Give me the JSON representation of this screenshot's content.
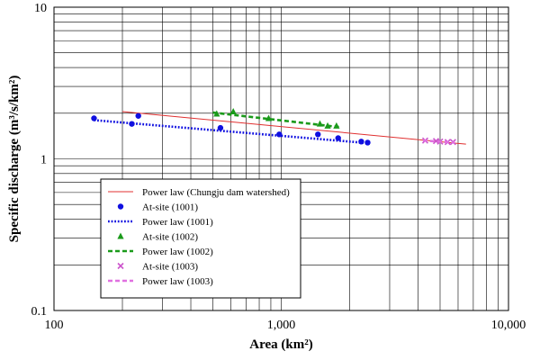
{
  "chart_data": {
    "type": "scatter",
    "x_scale": "log",
    "y_scale": "log",
    "xlim": [
      100,
      10000
    ],
    "ylim": [
      0.1,
      10
    ],
    "xlabel": "Area (km²)",
    "ylabel": "Specific discharge (m³/s/km²)",
    "x_ticks": [
      {
        "value": 100,
        "label": "100"
      },
      {
        "value": 1000,
        "label": "1,000"
      },
      {
        "value": 10000,
        "label": "10,000"
      }
    ],
    "y_ticks": [
      {
        "value": 0.1,
        "label": "0.1"
      },
      {
        "value": 1,
        "label": "1"
      },
      {
        "value": 10,
        "label": "10"
      }
    ],
    "grid": true,
    "legend_position": "bottom-left",
    "series": [
      {
        "name": "Power law (Chungju dam watershed)",
        "kind": "line",
        "style": "solid",
        "color": "#e03030",
        "points": [
          [
            200,
            2.05
          ],
          [
            6500,
            1.25
          ]
        ]
      },
      {
        "name": "At-site (1001)",
        "kind": "scatter",
        "marker": "circle",
        "color": "#1010e0",
        "points": [
          [
            150,
            1.85
          ],
          [
            220,
            1.7
          ],
          [
            235,
            1.92
          ],
          [
            540,
            1.6
          ],
          [
            980,
            1.45
          ],
          [
            1450,
            1.45
          ],
          [
            1780,
            1.37
          ],
          [
            2250,
            1.3
          ],
          [
            2400,
            1.28
          ]
        ]
      },
      {
        "name": "Power law (1001)",
        "kind": "line",
        "style": "dotted",
        "color": "#1010e0",
        "points": [
          [
            150,
            1.8
          ],
          [
            2400,
            1.27
          ]
        ]
      },
      {
        "name": "At-site (1002)",
        "kind": "scatter",
        "marker": "triangle",
        "color": "#1a9a1a",
        "points": [
          [
            520,
            1.98
          ],
          [
            615,
            2.05
          ],
          [
            880,
            1.85
          ],
          [
            1480,
            1.7
          ],
          [
            1600,
            1.65
          ],
          [
            1750,
            1.65
          ]
        ]
      },
      {
        "name": "Power law (1002)",
        "kind": "line",
        "style": "dashed",
        "color": "#1a9a1a",
        "points": [
          [
            500,
            2.02
          ],
          [
            1800,
            1.62
          ]
        ]
      },
      {
        "name": "At-site (1003)",
        "kind": "scatter",
        "marker": "x",
        "color": "#cc55cc",
        "points": [
          [
            4300,
            1.32
          ],
          [
            4800,
            1.31
          ],
          [
            5000,
            1.3
          ],
          [
            5400,
            1.29
          ],
          [
            5700,
            1.29
          ]
        ]
      },
      {
        "name": "Power law (1003)",
        "kind": "line",
        "style": "dashed",
        "color": "#e070e0",
        "points": [
          [
            4200,
            1.32
          ],
          [
            5800,
            1.28
          ]
        ]
      }
    ]
  }
}
